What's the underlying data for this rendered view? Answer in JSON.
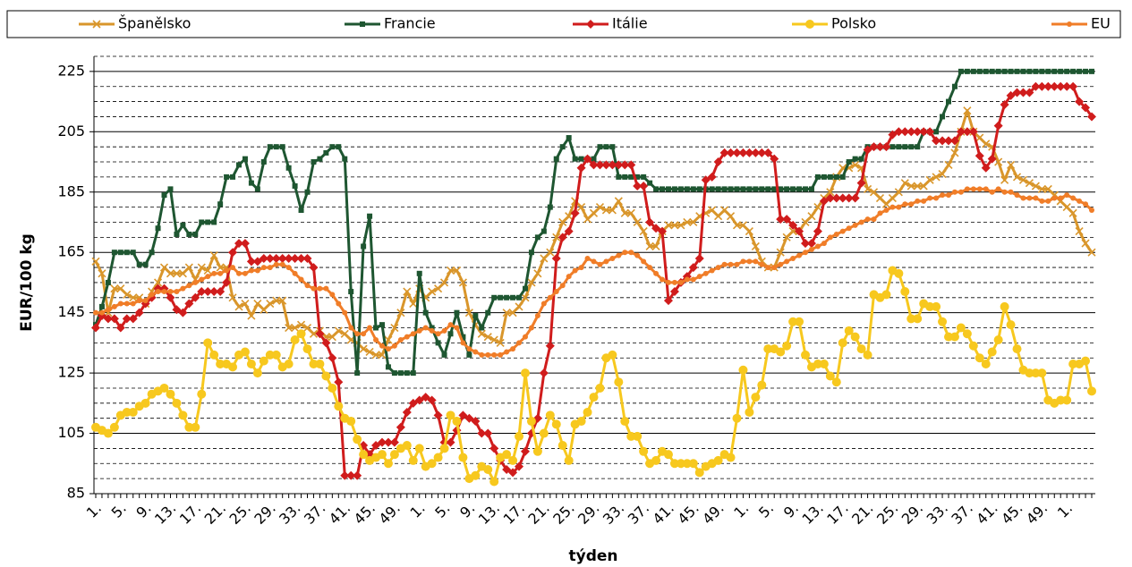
{
  "chart_data": {
    "type": "line",
    "y_label": "EUR/100 kg",
    "x_label": "týden",
    "legend": "top",
    "grid": true,
    "ylim": [
      85,
      230
    ],
    "yticks": [
      85,
      105,
      125,
      145,
      165,
      185,
      205,
      225
    ],
    "categories": [
      "1.",
      null,
      null,
      null,
      "5.",
      null,
      null,
      null,
      "9.",
      null,
      null,
      null,
      "13.",
      null,
      null,
      null,
      "17.",
      null,
      null,
      null,
      "21.",
      null,
      null,
      null,
      "25.",
      null,
      null,
      null,
      "29.",
      null,
      null,
      null,
      "33.",
      null,
      null,
      null,
      "37.",
      null,
      null,
      null,
      "41.",
      null,
      null,
      null,
      "45.",
      null,
      null,
      null,
      "49.",
      null,
      null,
      null,
      "1.",
      null,
      null,
      null,
      "5.",
      null,
      null,
      null,
      "9.",
      null,
      null,
      null,
      "13.",
      null,
      null,
      null,
      "17.",
      null,
      null,
      null,
      "21.",
      null,
      null,
      null,
      "25.",
      null,
      null,
      null,
      "29.",
      null,
      null,
      null,
      "33.",
      null,
      null,
      null,
      "37.",
      null,
      null,
      null,
      "41.",
      null,
      null,
      null,
      "45.",
      null,
      null,
      null,
      "49.",
      null,
      null,
      null,
      "1.",
      null,
      null,
      null,
      "5.",
      null,
      null,
      null,
      "9.",
      null,
      null,
      null,
      "13.",
      null,
      null,
      null,
      "17.",
      null,
      null,
      null,
      "21.",
      null,
      null,
      null,
      "25.",
      null,
      null,
      null,
      "29.",
      null,
      null,
      null,
      "33.",
      null,
      null,
      null,
      "37.",
      null,
      null,
      null,
      "41.",
      null,
      null,
      null,
      "45.",
      null,
      null,
      null,
      "49.",
      null,
      null,
      null,
      "1.",
      null,
      null,
      null,
      null
    ],
    "series": [
      {
        "name": "Španělsko",
        "color": "#d9962b",
        "marker": "x",
        "values": [
          162,
          158,
          145,
          153,
          153,
          151,
          150,
          150,
          148,
          152,
          155,
          160,
          158,
          158,
          158,
          160,
          156,
          160,
          159,
          164,
          160,
          160,
          150,
          147,
          148,
          144,
          148,
          146,
          148,
          149,
          149,
          140,
          140,
          141,
          140,
          138,
          139,
          137,
          137,
          139,
          138,
          136,
          135,
          133,
          132,
          131,
          131,
          136,
          140,
          145,
          152,
          148,
          153,
          150,
          152,
          153,
          155,
          159,
          159,
          155,
          145,
          141,
          138,
          137,
          136,
          135,
          145,
          145,
          147,
          150,
          155,
          158,
          163,
          165,
          170,
          175,
          177,
          182,
          180,
          176,
          178,
          180,
          179,
          179,
          182,
          178,
          178,
          175,
          172,
          167,
          167,
          172,
          174,
          174,
          174,
          175,
          175,
          177,
          178,
          179,
          177,
          179,
          177,
          174,
          174,
          172,
          167,
          162,
          160,
          160,
          165,
          170,
          172,
          172,
          175,
          177,
          180,
          183,
          185,
          190,
          193,
          193,
          194,
          193,
          186,
          185,
          183,
          181,
          183,
          185,
          188,
          187,
          187,
          187,
          189,
          190,
          191,
          194,
          198,
          205,
          212,
          205,
          203,
          201,
          200,
          195,
          189,
          194,
          190,
          189,
          188,
          187,
          186,
          186,
          184,
          182,
          180,
          178,
          172,
          168,
          165
        ]
      },
      {
        "name": "Francie",
        "color": "#1e5631",
        "marker": "square",
        "values": [
          141,
          147,
          155,
          165,
          165,
          165,
          165,
          161,
          161,
          165,
          173,
          184,
          186,
          171,
          174,
          171,
          171,
          175,
          175,
          175,
          181,
          190,
          190,
          194,
          196,
          188,
          186,
          195,
          200,
          200,
          200,
          193,
          187,
          179,
          185,
          195,
          196,
          198,
          200,
          200,
          196,
          152,
          125,
          167,
          177,
          140,
          141,
          127,
          125,
          125,
          125,
          125,
          158,
          145,
          140,
          135,
          131,
          138,
          145,
          137,
          131,
          144,
          140,
          145,
          150,
          150,
          150,
          150,
          150,
          153,
          165,
          170,
          172,
          180,
          196,
          200,
          203,
          196,
          196,
          196,
          196,
          200,
          200,
          200,
          190,
          190,
          190,
          190,
          190,
          188,
          186,
          186,
          186,
          186,
          186,
          186,
          186,
          186,
          186,
          186,
          186,
          186,
          186,
          186,
          186,
          186,
          186,
          186,
          186,
          186,
          186,
          186,
          186,
          186,
          186,
          186,
          190,
          190,
          190,
          190,
          190,
          195,
          196,
          196,
          200,
          200,
          200,
          200,
          200,
          200,
          200,
          200,
          200,
          205,
          205,
          205,
          210,
          215,
          220,
          225,
          225,
          225,
          225,
          225,
          225,
          225,
          225,
          225,
          225,
          225,
          225,
          225,
          225,
          225,
          225,
          225,
          225,
          225,
          225,
          225,
          225
        ]
      },
      {
        "name": "Itálie",
        "color": "#d01c1c",
        "marker": "diamond",
        "values": [
          140,
          144,
          143,
          143,
          140,
          143,
          143,
          145,
          148,
          150,
          153,
          153,
          150,
          146,
          145,
          148,
          150,
          152,
          152,
          152,
          152,
          155,
          165,
          168,
          168,
          162,
          162,
          163,
          163,
          163,
          163,
          163,
          163,
          163,
          163,
          160,
          138,
          135,
          130,
          122,
          91,
          91,
          91,
          101,
          98,
          101,
          102,
          102,
          102,
          107,
          112,
          115,
          116,
          117,
          116,
          111,
          102,
          102,
          106,
          111,
          110,
          109,
          105,
          105,
          100,
          96,
          93,
          92,
          94,
          99,
          105,
          110,
          125,
          134,
          163,
          170,
          172,
          178,
          193,
          196,
          194,
          194,
          194,
          194,
          194,
          194,
          194,
          187,
          187,
          175,
          173,
          172,
          149,
          152,
          155,
          157,
          160,
          163,
          189,
          190,
          195,
          198,
          198,
          198,
          198,
          198,
          198,
          198,
          198,
          196,
          176,
          176,
          174,
          172,
          168,
          168,
          172,
          182,
          183,
          183,
          183,
          183,
          183,
          188,
          199,
          200,
          200,
          200,
          204,
          205,
          205,
          205,
          205,
          205,
          205,
          202,
          202,
          202,
          202,
          205,
          205,
          205,
          197,
          193,
          196,
          207,
          214,
          217,
          218,
          218,
          218,
          220,
          220,
          220,
          220,
          220,
          220,
          220,
          215,
          213,
          210
        ]
      },
      {
        "name": "Polsko",
        "color": "#f7c81e",
        "marker": "circle",
        "values": [
          107,
          106,
          105,
          107,
          111,
          112,
          112,
          114,
          115,
          118,
          119,
          120,
          118,
          115,
          111,
          107,
          107,
          118,
          135,
          131,
          128,
          128,
          127,
          131,
          132,
          128,
          125,
          129,
          131,
          131,
          127,
          128,
          136,
          138,
          133,
          128,
          128,
          124,
          120,
          114,
          110,
          109,
          103,
          98,
          96,
          97,
          98,
          95,
          98,
          100,
          101,
          96,
          100,
          94,
          95,
          97,
          100,
          111,
          109,
          97,
          90,
          91,
          94,
          93,
          89,
          97,
          98,
          96,
          104,
          125,
          109,
          99,
          105,
          111,
          108,
          101,
          96,
          108,
          109,
          112,
          117,
          120,
          130,
          131,
          122,
          109,
          104,
          104,
          99,
          95,
          96,
          99,
          98,
          95,
          95,
          95,
          95,
          92,
          94,
          95,
          96,
          98,
          97,
          110,
          126,
          112,
          117,
          121,
          133,
          133,
          132,
          134,
          142,
          142,
          131,
          127,
          128,
          128,
          124,
          122,
          135,
          139,
          137,
          133,
          131,
          151,
          150,
          151,
          159,
          158,
          152,
          143,
          143,
          148,
          147,
          147,
          142,
          137,
          137,
          140,
          138,
          134,
          130,
          128,
          132,
          136,
          147,
          141,
          133,
          126,
          125,
          125,
          125,
          116,
          115,
          116,
          116,
          128,
          128,
          129,
          119
        ]
      },
      {
        "name": "EU",
        "color": "#f07d28",
        "marker": "dot",
        "values": [
          145,
          145,
          146,
          147,
          148,
          148,
          148,
          149,
          149,
          151,
          152,
          152,
          152,
          152,
          153,
          154,
          155,
          156,
          157,
          158,
          158,
          159,
          160,
          158,
          158,
          159,
          159,
          160,
          160,
          161,
          161,
          160,
          158,
          156,
          154,
          153,
          153,
          153,
          151,
          148,
          145,
          140,
          138,
          138,
          140,
          136,
          134,
          133,
          134,
          136,
          137,
          138,
          139,
          140,
          139,
          138,
          139,
          141,
          140,
          135,
          133,
          132,
          131,
          131,
          131,
          131,
          132,
          133,
          135,
          137,
          140,
          144,
          148,
          150,
          152,
          154,
          157,
          159,
          160,
          163,
          162,
          161,
          162,
          163,
          164,
          165,
          165,
          164,
          162,
          160,
          158,
          156,
          155,
          155,
          155,
          156,
          156,
          157,
          158,
          159,
          160,
          161,
          161,
          161,
          162,
          162,
          162,
          161,
          160,
          160,
          161,
          162,
          163,
          164,
          165,
          166,
          167,
          168,
          170,
          171,
          172,
          173,
          174,
          175,
          176,
          176,
          178,
          179,
          180,
          180,
          181,
          181,
          182,
          182,
          183,
          183,
          184,
          184,
          185,
          185,
          186,
          186,
          186,
          186,
          185,
          186,
          185,
          185,
          184,
          183,
          183,
          183,
          182,
          182,
          183,
          183,
          184,
          183,
          182,
          181,
          179
        ]
      }
    ]
  }
}
